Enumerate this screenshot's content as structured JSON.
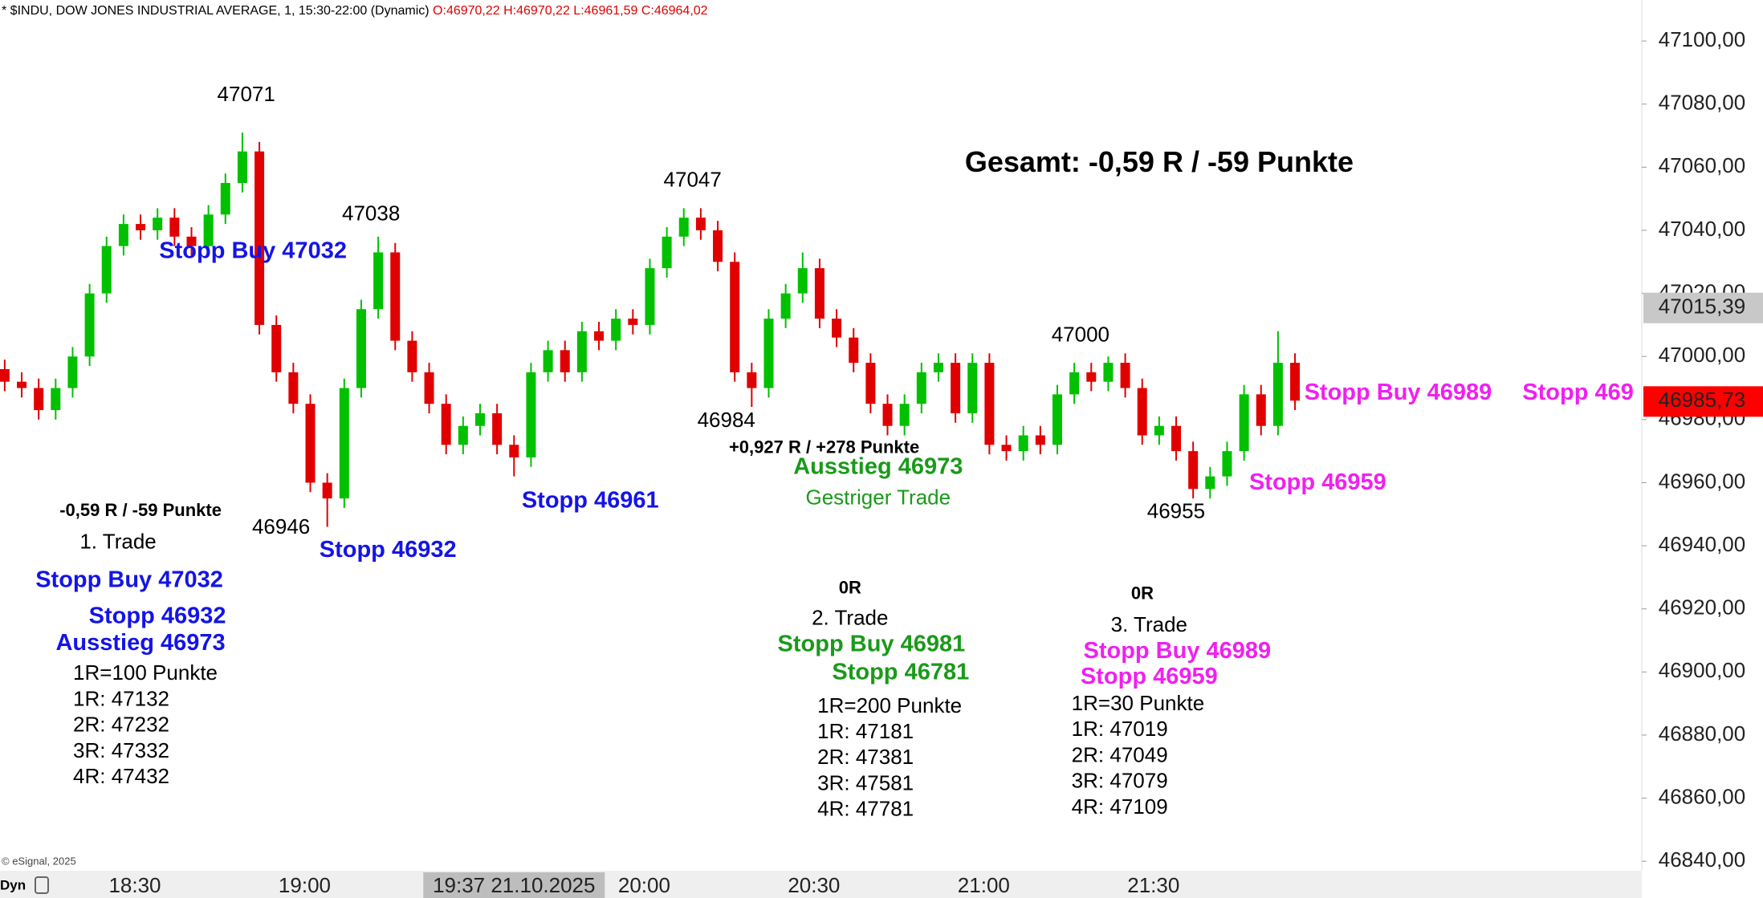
{
  "header": {
    "symbol": "* $INDU, DOW JONES INDUSTRIAL AVERAGE, 1, 15:30-22:00 (Dynamic)",
    "ohlc": "O:46970,22 H:46970,22 L:46961,59 C:46964,02",
    "ohlc_color": "#e00000"
  },
  "chart_data": {
    "type": "candlestick",
    "up_color": "#00c000",
    "down_color": "#e00000",
    "x": [
      "18:07",
      "18:10",
      "18:13",
      "18:16",
      "18:19",
      "18:22",
      "18:25",
      "18:28",
      "18:31",
      "18:34",
      "18:37",
      "18:40",
      "18:43",
      "18:46",
      "18:49",
      "18:52",
      "18:55",
      "18:58",
      "19:01",
      "19:04",
      "19:07",
      "19:10",
      "19:13",
      "19:16",
      "19:19",
      "19:22",
      "19:25",
      "19:28",
      "19:31",
      "19:34",
      "19:37",
      "19:40",
      "19:43",
      "19:46",
      "19:49",
      "19:52",
      "19:55",
      "19:58",
      "20:01",
      "20:04",
      "20:07",
      "20:10",
      "20:13",
      "20:16",
      "20:19",
      "20:22",
      "20:25",
      "20:28",
      "20:31",
      "20:34",
      "20:37",
      "20:40",
      "20:43",
      "20:46",
      "20:49",
      "20:52",
      "20:55",
      "20:58",
      "21:01",
      "21:04",
      "21:07",
      "21:10",
      "21:13",
      "21:16",
      "21:19",
      "21:22",
      "21:25",
      "21:28",
      "21:31",
      "21:34",
      "21:37",
      "21:40",
      "21:43",
      "21:46",
      "21:49",
      "21:52",
      "21:55"
    ],
    "ohlc": [
      [
        46996,
        46999,
        46989,
        46992
      ],
      [
        46992,
        46995,
        46987,
        46990
      ],
      [
        46990,
        46993,
        46980,
        46983
      ],
      [
        46983,
        46993,
        46980,
        46990
      ],
      [
        46990,
        47003,
        46987,
        47000
      ],
      [
        47000,
        47023,
        46997,
        47020
      ],
      [
        47020,
        47038,
        47017,
        47035
      ],
      [
        47035,
        47045,
        47032,
        47042
      ],
      [
        47042,
        47045,
        47037,
        47040
      ],
      [
        47040,
        47047,
        47037,
        47044
      ],
      [
        47044,
        47047,
        47035,
        47038
      ],
      [
        47038,
        47041,
        47032,
        47035
      ],
      [
        47035,
        47048,
        47032,
        47045
      ],
      [
        47045,
        47058,
        47042,
        47055
      ],
      [
        47055,
        47071,
        47052,
        47065
      ],
      [
        47065,
        47068,
        47007,
        47010
      ],
      [
        47010,
        47013,
        46992,
        46995
      ],
      [
        46995,
        46998,
        46982,
        46985
      ],
      [
        46985,
        46988,
        46957,
        46960
      ],
      [
        46960,
        46963,
        46946,
        46955
      ],
      [
        46955,
        46993,
        46952,
        46990
      ],
      [
        46990,
        47018,
        46987,
        47015
      ],
      [
        47015,
        47038,
        47012,
        47033
      ],
      [
        47033,
        47036,
        47002,
        47005
      ],
      [
        47005,
        47008,
        46992,
        46995
      ],
      [
        46995,
        46998,
        46982,
        46985
      ],
      [
        46985,
        46988,
        46969,
        46972
      ],
      [
        46972,
        46981,
        46969,
        46978
      ],
      [
        46978,
        46985,
        46975,
        46982
      ],
      [
        46982,
        46985,
        46969,
        46972
      ],
      [
        46972,
        46975,
        46962,
        46968
      ],
      [
        46968,
        46998,
        46965,
        46995
      ],
      [
        46995,
        47005,
        46992,
        47002
      ],
      [
        47002,
        47005,
        46992,
        46995
      ],
      [
        46995,
        47011,
        46992,
        47008
      ],
      [
        47008,
        47011,
        47002,
        47005
      ],
      [
        47005,
        47015,
        47002,
        47012
      ],
      [
        47012,
        47015,
        47007,
        47010
      ],
      [
        47010,
        47031,
        47007,
        47028
      ],
      [
        47028,
        47041,
        47025,
        47038
      ],
      [
        47038,
        47047,
        47035,
        47044
      ],
      [
        47044,
        47047,
        47037,
        47040
      ],
      [
        47040,
        47043,
        47027,
        47030
      ],
      [
        47030,
        47033,
        46992,
        46995
      ],
      [
        46995,
        46998,
        46984,
        46990
      ],
      [
        46990,
        47015,
        46987,
        47012
      ],
      [
        47012,
        47023,
        47009,
        47020
      ],
      [
        47020,
        47033,
        47017,
        47028
      ],
      [
        47028,
        47031,
        47009,
        47012
      ],
      [
        47012,
        47015,
        47003,
        47006
      ],
      [
        47006,
        47009,
        46995,
        46998
      ],
      [
        46998,
        47001,
        46982,
        46985
      ],
      [
        46985,
        46988,
        46975,
        46978
      ],
      [
        46978,
        46988,
        46975,
        46985
      ],
      [
        46985,
        46998,
        46982,
        46995
      ],
      [
        46995,
        47001,
        46992,
        46998
      ],
      [
        46998,
        47001,
        46979,
        46982
      ],
      [
        46982,
        47001,
        46979,
        46998
      ],
      [
        46998,
        47001,
        46969,
        46972
      ],
      [
        46972,
        46975,
        46967,
        46970
      ],
      [
        46970,
        46978,
        46967,
        46975
      ],
      [
        46975,
        46978,
        46969,
        46972
      ],
      [
        46972,
        46991,
        46969,
        46988
      ],
      [
        46988,
        46998,
        46985,
        46995
      ],
      [
        46995,
        46998,
        46989,
        46992
      ],
      [
        46992,
        47000,
        46989,
        46998
      ],
      [
        46998,
        47001,
        46987,
        46990
      ],
      [
        46990,
        46993,
        46972,
        46975
      ],
      [
        46975,
        46981,
        46972,
        46978
      ],
      [
        46978,
        46981,
        46967,
        46970
      ],
      [
        46970,
        46973,
        46955,
        46958
      ],
      [
        46958,
        46965,
        46955,
        46962
      ],
      [
        46962,
        46973,
        46959,
        46970
      ],
      [
        46970,
        46991,
        46967,
        46988
      ],
      [
        46988,
        46991,
        46975,
        46978
      ],
      [
        46978,
        47008,
        46975,
        46998
      ],
      [
        46998,
        47001,
        46983,
        46986
      ]
    ],
    "ylim": [
      46837,
      47113
    ],
    "yticks": [
      {
        "value": 46840,
        "label": "46840,00"
      },
      {
        "value": 46860,
        "label": "46860,00"
      },
      {
        "value": 46880,
        "label": "46880,00"
      },
      {
        "value": 46900,
        "label": "46900,00"
      },
      {
        "value": 46920,
        "label": "46920,00"
      },
      {
        "value": 46940,
        "label": "46940,00"
      },
      {
        "value": 46960,
        "label": "46960,00"
      },
      {
        "value": 46980,
        "label": "46980,00"
      },
      {
        "value": 47000,
        "label": "47000,00"
      },
      {
        "value": 47020,
        "label": "47020,00"
      },
      {
        "value": 47040,
        "label": "47040,00"
      },
      {
        "value": 47060,
        "label": "47060,00"
      },
      {
        "value": 47080,
        "label": "47080,00"
      },
      {
        "value": 47100,
        "label": "47100,00"
      }
    ],
    "xticks": [
      "18:30",
      "19:00",
      "20:00",
      "20:30",
      "21:00",
      "21:30"
    ],
    "crosshair_label": "19:37 21.10.2025",
    "price_tags": [
      {
        "value": 47015.39,
        "label": "47015,39",
        "color": "#c8c8c8"
      },
      {
        "value": 46985.73,
        "label": "46985,73",
        "color": "#ff0000"
      }
    ],
    "annotations": [
      {
        "text": "47071",
        "color": "#000000"
      },
      {
        "text": "47038",
        "color": "#000000"
      },
      {
        "text": "47047",
        "color": "#000000"
      },
      {
        "text": "47000",
        "color": "#000000"
      },
      {
        "text": "46984",
        "color": "#000000"
      },
      {
        "text": "46946",
        "color": "#000000"
      },
      {
        "text": "46955",
        "color": "#000000"
      },
      {
        "text": "Gesamt: -0,59 R / -59 Punkte",
        "color": "#000000"
      },
      {
        "text": "Stopp Buy 47032",
        "color": "#1414e6"
      },
      {
        "text": "Stopp 46932",
        "color": "#1414e6"
      },
      {
        "text": "Stopp 46961",
        "color": "#1414e6"
      },
      {
        "text": "+0,927 R / +278 Punkte",
        "color": "#000000"
      },
      {
        "text": "Ausstieg 46973",
        "color": "#1a9a1a"
      },
      {
        "text": "Gestriger Trade",
        "color": "#1a9a1a"
      },
      {
        "text": "Stopp Buy 46989",
        "color": "#f020f0"
      },
      {
        "text": "Stopp 469",
        "color": "#f020f0"
      },
      {
        "text": "Stopp 46959",
        "color": "#f020f0"
      },
      {
        "text": "-0,59 R / -59 Punkte",
        "color": "#000000"
      },
      {
        "text": "1. Trade",
        "color": "#000000"
      },
      {
        "text": "Stopp Buy 47032",
        "color": "#1414e6"
      },
      {
        "text": "Stopp 46932",
        "color": "#1414e6"
      },
      {
        "text": "Ausstieg 46973",
        "color": "#1414e6"
      },
      {
        "text": "1R=100 Punkte",
        "color": "#000000"
      },
      {
        "text": "1R: 47132",
        "color": "#000000"
      },
      {
        "text": "2R: 47232",
        "color": "#000000"
      },
      {
        "text": "3R: 47332",
        "color": "#000000"
      },
      {
        "text": "4R: 47432",
        "color": "#000000"
      },
      {
        "text": "0R",
        "color": "#000000"
      },
      {
        "text": "2. Trade",
        "color": "#000000"
      },
      {
        "text": "Stopp Buy 46981",
        "color": "#1a9a1a"
      },
      {
        "text": "Stopp 46781",
        "color": "#1a9a1a"
      },
      {
        "text": "1R=200 Punkte",
        "color": "#000000"
      },
      {
        "text": "1R: 47181",
        "color": "#000000"
      },
      {
        "text": "2R: 47381",
        "color": "#000000"
      },
      {
        "text": "3R: 47581",
        "color": "#000000"
      },
      {
        "text": "4R: 47781",
        "color": "#000000"
      },
      {
        "text": "0R",
        "color": "#000000"
      },
      {
        "text": "3. Trade",
        "color": "#000000"
      },
      {
        "text": "Stopp Buy 46989",
        "color": "#f020f0"
      },
      {
        "text": "Stopp 46959",
        "color": "#f020f0"
      },
      {
        "text": "1R=30 Punkte",
        "color": "#000000"
      },
      {
        "text": "1R: 47019",
        "color": "#000000"
      },
      {
        "text": "2R: 47049",
        "color": "#000000"
      },
      {
        "text": "3R: 47079",
        "color": "#000000"
      },
      {
        "text": "4R: 47109",
        "color": "#000000"
      }
    ]
  },
  "footer": {
    "copyright": "© eSignal, 2025",
    "mode": "Dyn"
  }
}
